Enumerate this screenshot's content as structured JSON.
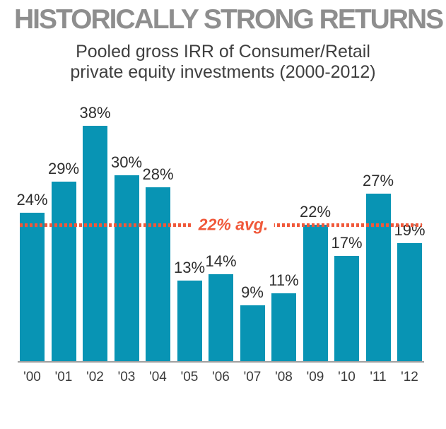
{
  "header": {
    "title": "HISTORICALLY STRONG RETURNS",
    "subtitle_line1": "Pooled gross IRR of Consumer/Retail",
    "subtitle_line2": "private equity investments (2000-2012)"
  },
  "chart_data": {
    "type": "bar",
    "title": "HISTORICALLY STRONG RETURNS",
    "subtitle": "Pooled gross IRR of Consumer/Retail private equity investments (2000-2012)",
    "categories": [
      "'00",
      "'01",
      "'02",
      "'03",
      "'04",
      "'05",
      "'06",
      "'07",
      "'08",
      "'09",
      "'10",
      "'11",
      "'12"
    ],
    "values": [
      24,
      29,
      38,
      30,
      28,
      13,
      14,
      9,
      11,
      22,
      17,
      27,
      19
    ],
    "value_suffix": "%",
    "xlabel": "",
    "ylabel": "",
    "ylim": [
      0,
      42
    ],
    "grid": false,
    "legend": "none",
    "average_line": {
      "value": 22,
      "label": "22% avg.",
      "style": "dotted"
    },
    "colors": {
      "bar": "#0894b4",
      "average_line": "#f0583a",
      "title": "#8e8e8e",
      "subtitle": "#3f3f3f",
      "value_labels": "#2d2d2d",
      "axis_line": "#a0a0a0",
      "tick_labels": "#3b3b3b",
      "background": "#ffffff"
    }
  }
}
